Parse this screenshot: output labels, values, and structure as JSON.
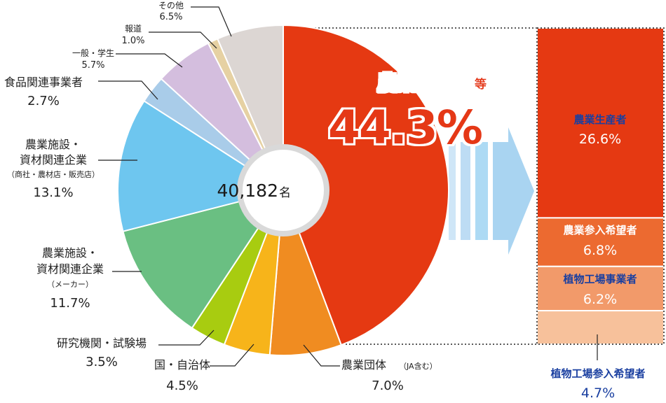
{
  "chart_data": {
    "type": "pie",
    "total_label": "40,182",
    "total_unit": "名",
    "slices": [
      {
        "key": "farmers",
        "value": 44.3,
        "color": "#e53912"
      },
      {
        "key": "ja",
        "value": 7.0,
        "color": "#f08c21"
      },
      {
        "key": "local_gov",
        "value": 4.5,
        "color": "#f7b41a"
      },
      {
        "key": "research",
        "value": 3.5,
        "color": "#a8cc10"
      },
      {
        "key": "maker",
        "value": 11.7,
        "color": "#6abf82"
      },
      {
        "key": "dealer",
        "value": 13.1,
        "color": "#6ec6ef"
      },
      {
        "key": "food",
        "value": 2.7,
        "color": "#a9cce9"
      },
      {
        "key": "general",
        "value": 5.7,
        "color": "#d4bede"
      },
      {
        "key": "press",
        "value": 1.0,
        "color": "#e6d1a3"
      },
      {
        "key": "other",
        "value": 6.5,
        "color": "#dcd6d3"
      }
    ],
    "labels": {
      "other": {
        "name": "その他",
        "pct": "6.5%"
      },
      "press": {
        "name": "報道",
        "pct": "1.0%"
      },
      "general": {
        "name": "一般・学生",
        "pct": "5.7%"
      },
      "food": {
        "name": "食品関連事業者",
        "pct": "2.7%"
      },
      "dealer": {
        "line1": "農業施設・",
        "line2": "資材関連企業",
        "sub": "（商社・農材店・販売店）",
        "pct": "13.1%"
      },
      "maker": {
        "line1": "農業施設・",
        "line2": "資材関連企業",
        "sub": "（メーカー）",
        "pct": "11.7%"
      },
      "research": {
        "name": "研究機関・試験場",
        "pct": "3.5%"
      },
      "local_gov": {
        "name": "国・自治体",
        "pct": "4.5%"
      },
      "ja": {
        "name": "農業団体",
        "sub": "（JA含む）",
        "pct": "7.0%"
      }
    },
    "highlight": {
      "name": "農業生産者",
      "suffix": "等",
      "pct": "44.3%"
    },
    "breakdown": [
      {
        "name": "農業生産者",
        "pct": "26.6%",
        "value": 26.6,
        "color": "#e53912",
        "name_color": "#1a3fa0"
      },
      {
        "name": "農業参入希望者",
        "pct": "6.8%",
        "value": 6.8,
        "color": "#ec6a30",
        "name_color": "#ffffff"
      },
      {
        "name": "植物工場事業者",
        "pct": "6.2%",
        "value": 6.2,
        "color": "#f29a6a",
        "name_color": "#1a3fa0"
      },
      {
        "name": "植物工場参入希望者",
        "pct": "4.7%",
        "value": 4.7,
        "color": "#f7c19b",
        "name_color": "#1a3fa0"
      }
    ]
  }
}
